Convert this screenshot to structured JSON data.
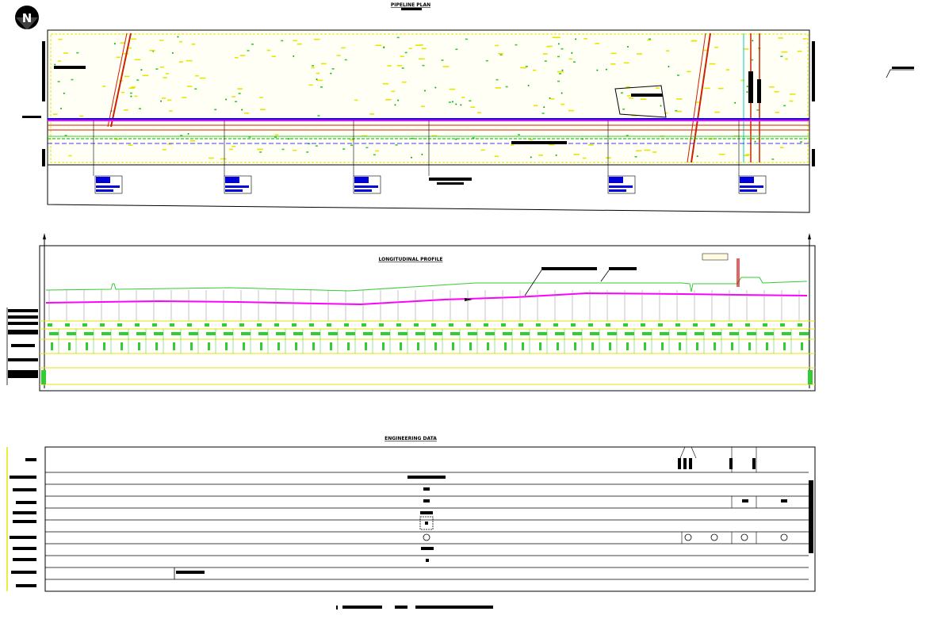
{
  "titles": {
    "plan": "PIPELINE PLAN",
    "profile": "LONGITUDINAL PROFILE",
    "engineering": "ENGINEERING DATA"
  },
  "north_label": "N",
  "colors": {
    "pipeline_magenta": "#ff00ff",
    "ground_green": "#33cc33",
    "road_red": "#cc2200",
    "survey_yellow": "#e6e600",
    "label_blue": "#0000dd",
    "border_black": "#000000",
    "cyan": "#00cccc"
  },
  "icons": [
    "north-arrow-icon"
  ]
}
